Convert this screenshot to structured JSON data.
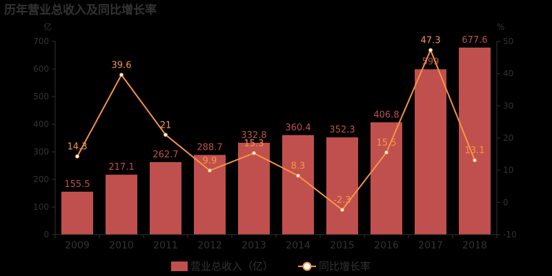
{
  "title": "历年营业总收入及同比增长率",
  "colors": {
    "bar": "#c0504d",
    "line": "#f79646",
    "axis": "#333333",
    "background": "#000000"
  },
  "chart_data": {
    "type": "bar+line",
    "title": "历年营业总收入及同比增长率",
    "categories": [
      "2009",
      "2010",
      "2011",
      "2012",
      "2013",
      "2014",
      "2015",
      "2016",
      "2017",
      "2018"
    ],
    "series": [
      {
        "name": "营业总收入（亿）",
        "type": "bar",
        "axis": "left",
        "values": [
          155.5,
          217.1,
          262.7,
          288.7,
          332.8,
          360.4,
          352.3,
          406.8,
          599,
          677.6
        ]
      },
      {
        "name": "同比增长率",
        "type": "line",
        "axis": "right",
        "values": [
          14.3,
          39.6,
          21,
          9.9,
          15.3,
          8.3,
          -2.3,
          15.5,
          47.3,
          13.1
        ]
      }
    ],
    "left_axis": {
      "label": "亿",
      "ylim": [
        0,
        700
      ],
      "ticks": [
        0,
        100,
        200,
        300,
        400,
        500,
        600,
        700
      ]
    },
    "right_axis": {
      "label": "%",
      "ylim": [
        -10,
        50
      ],
      "ticks": [
        -10,
        0,
        10,
        20,
        30,
        40,
        50
      ]
    },
    "legend_position": "bottom",
    "grid": false
  },
  "labels": {
    "bar_labels": [
      "155.5",
      "217.1",
      "262.7",
      "288.7",
      "332.8",
      "360.4",
      "352.3",
      "406.8",
      "599",
      "677.6"
    ],
    "line_labels": [
      "14.3",
      "39.6",
      "21",
      "9.9",
      "15.3",
      "8.3",
      "-2.3",
      "15.5",
      "47.3",
      "13.1"
    ]
  },
  "legend": {
    "bar": "营业总收入（亿）",
    "line": "同比增长率"
  }
}
